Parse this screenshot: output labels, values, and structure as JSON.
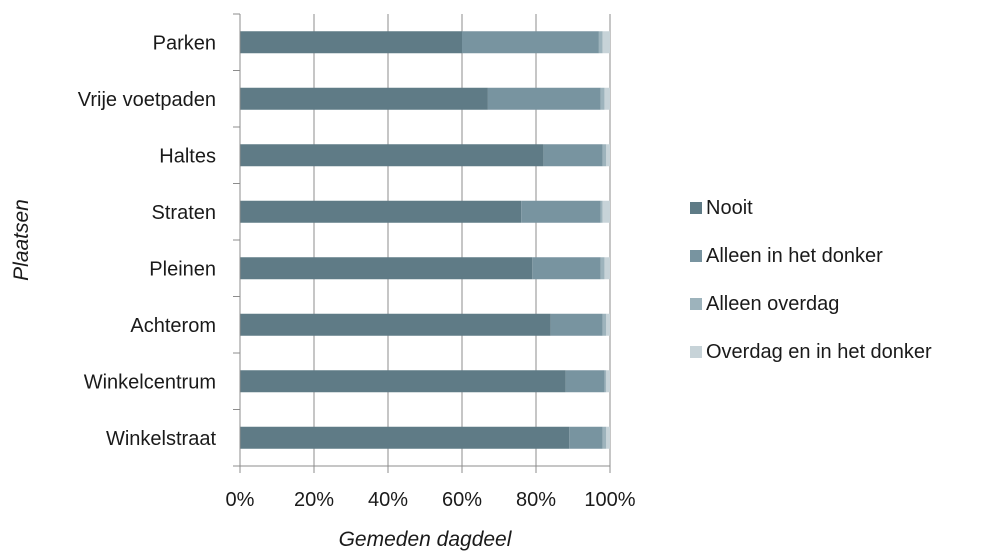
{
  "chart_data": {
    "type": "bar",
    "orientation": "horizontal",
    "stacked": "percent",
    "categories": [
      "Parken",
      "Vrije voetpaden",
      "Haltes",
      "Straten",
      "Pleinen",
      "Achterom",
      "Winkelcentrum",
      "Winkelstraat"
    ],
    "series": [
      {
        "name": "Nooit",
        "values": [
          60,
          67,
          82,
          76,
          79,
          84,
          88,
          89
        ],
        "color": "#5f7b86"
      },
      {
        "name": "Alleen in het donker",
        "values": [
          37,
          30.5,
          16,
          21.5,
          18.5,
          14,
          10.5,
          9
        ],
        "color": "#7894a0"
      },
      {
        "name": "Alleen overdag",
        "values": [
          1,
          1,
          1,
          0.5,
          1,
          1,
          0.5,
          1
        ],
        "color": "#9db3bc"
      },
      {
        "name": "Overdag en in het donker",
        "values": [
          2,
          1.5,
          1,
          2,
          1.5,
          1,
          1,
          1
        ],
        "color": "#c7d3d8"
      }
    ],
    "xticks": [
      "0%",
      "20%",
      "40%",
      "60%",
      "80%",
      "100%"
    ],
    "xlim": [
      0,
      100
    ],
    "xlabel": "Gemeden dagdeel",
    "ylabel": "Plaatsen",
    "grid": "vertical",
    "legend": "right"
  }
}
